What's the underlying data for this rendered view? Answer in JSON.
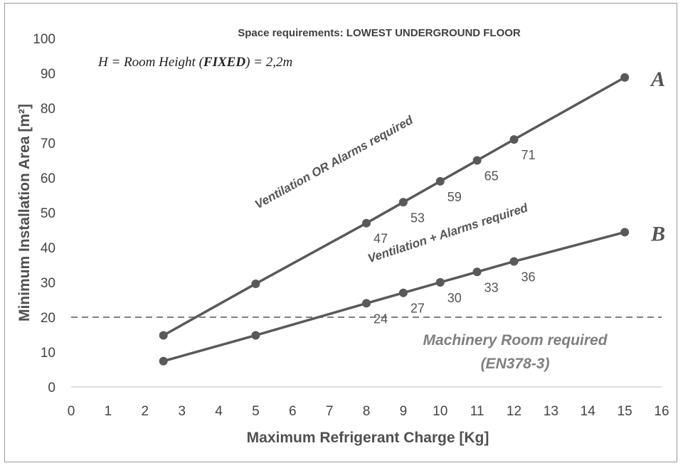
{
  "chart_data": {
    "type": "line",
    "title": "Space requirements: LOWEST UNDERGROUND FLOOR",
    "formula": {
      "prefix": "H = Room Height (",
      "bold": "FIXED",
      "suffix": ") = 2,2m"
    },
    "xlabel": "Maximum Refrigerant Charge [Kg]",
    "ylabel": "Minimum Installation Area [m²]",
    "xlim": [
      0,
      16
    ],
    "ylim": [
      0,
      100
    ],
    "xticks": [
      "0",
      "1",
      "2",
      "3",
      "4",
      "5",
      "6",
      "7",
      "8",
      "9",
      "10",
      "11",
      "12",
      "13",
      "14",
      "15",
      "16"
    ],
    "yticks": [
      "0",
      "10",
      "20",
      "30",
      "40",
      "50",
      "60",
      "70",
      "80",
      "90",
      "100"
    ],
    "grid": false,
    "series": [
      {
        "name": "A",
        "color": "#595959",
        "points": [
          {
            "x": 2.5,
            "y": 14.8
          },
          {
            "x": 5,
            "y": 29.6
          },
          {
            "x": 8,
            "y": 47,
            "label": "47"
          },
          {
            "x": 9,
            "y": 53,
            "label": "53"
          },
          {
            "x": 10,
            "y": 59,
            "label": "59"
          },
          {
            "x": 11,
            "y": 65,
            "label": "65"
          },
          {
            "x": 12,
            "y": 71,
            "label": "71"
          },
          {
            "x": 15,
            "y": 88.8
          }
        ]
      },
      {
        "name": "B",
        "color": "#595959",
        "points": [
          {
            "x": 2.5,
            "y": 7.4
          },
          {
            "x": 5,
            "y": 14.8
          },
          {
            "x": 8,
            "y": 24,
            "label": "24"
          },
          {
            "x": 9,
            "y": 27,
            "label": "27"
          },
          {
            "x": 10,
            "y": 30,
            "label": "30"
          },
          {
            "x": 11,
            "y": 33,
            "label": "33"
          },
          {
            "x": 12,
            "y": 36,
            "label": "36"
          },
          {
            "x": 15,
            "y": 44.4
          }
        ]
      }
    ],
    "threshold": {
      "y": 20,
      "style": "dashed",
      "color": "#7f7f7f"
    },
    "annotations": {
      "region_upper": "Ventilation OR Alarms required",
      "region_middle": "Ventilation + Alarms required",
      "machinery_line1": "Machinery Room required",
      "machinery_line2": "(EN378-3)"
    }
  }
}
